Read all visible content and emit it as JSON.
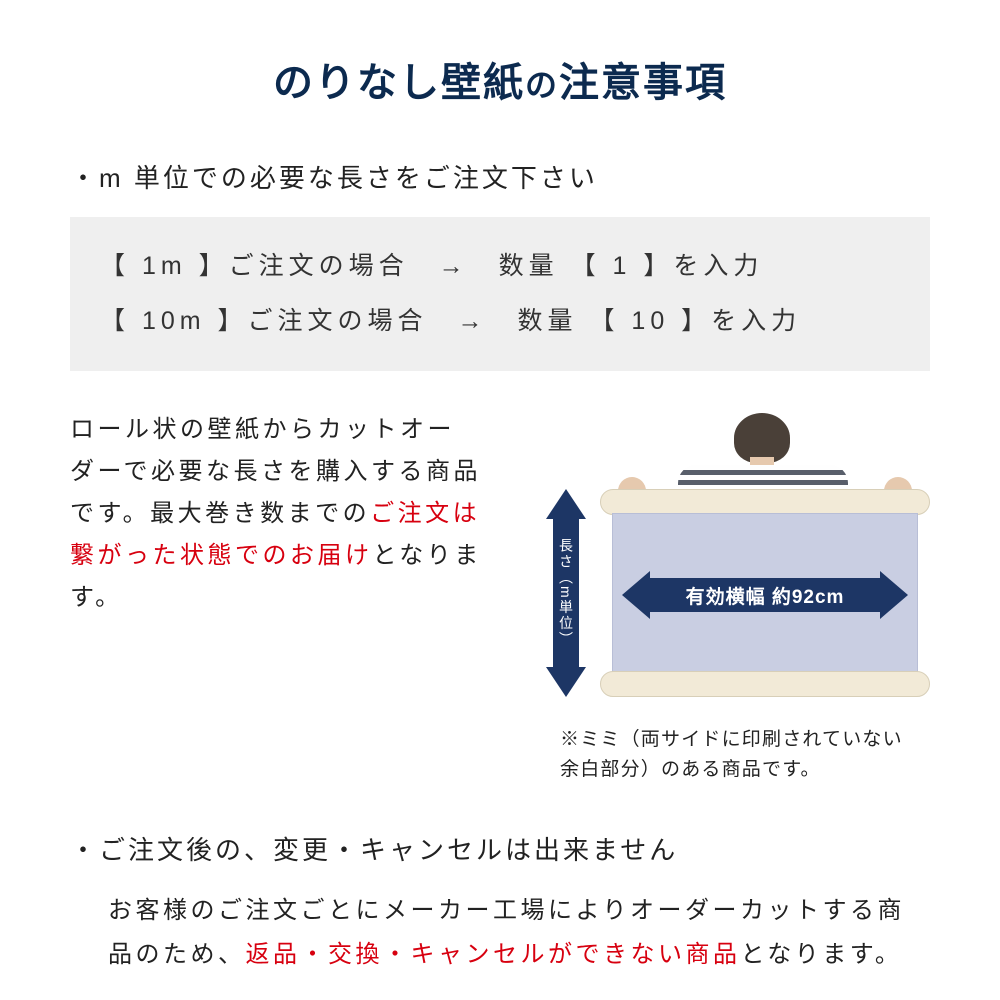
{
  "title": {
    "main": "のりなし壁紙",
    "connector": "の",
    "sub": "注意事項"
  },
  "bullet1": "・m 単位での必要な長さをご注文下さい",
  "order_examples": {
    "row1": {
      "left": "【 1m 】ご注文の場合",
      "arrow": "→",
      "right": "数量 【 1 】を入力"
    },
    "row2": {
      "left": "【 10m 】ご注文の場合",
      "arrow": "→",
      "right": "数量 【 10 】を入力"
    }
  },
  "mid_text": {
    "part1": "ロール状の壁紙からカットオーダーで必要な長さを購入する商品です。最大巻き数までの",
    "red": "ご注文は繋がった状態でのお届け",
    "part2": "となります。"
  },
  "illustration": {
    "vertical_label": "長さ（m単位）",
    "horizontal_label": "有効横幅 約92cm",
    "colors": {
      "arrow": "#1d3665",
      "sheet": "#c9cee2",
      "roll": "#f2ead7"
    }
  },
  "note": "※ミミ（両サイドに印刷されていない　余白部分）のある商品です。",
  "bullet2": "・ご注文後の、変更・キャンセルは出来ません",
  "body2": {
    "part1": "お客様のご注文ごとにメーカー工場によりオーダーカットする商品のため、",
    "red": "返品・交換・キャンセルができない商品",
    "part2": "となります。"
  }
}
